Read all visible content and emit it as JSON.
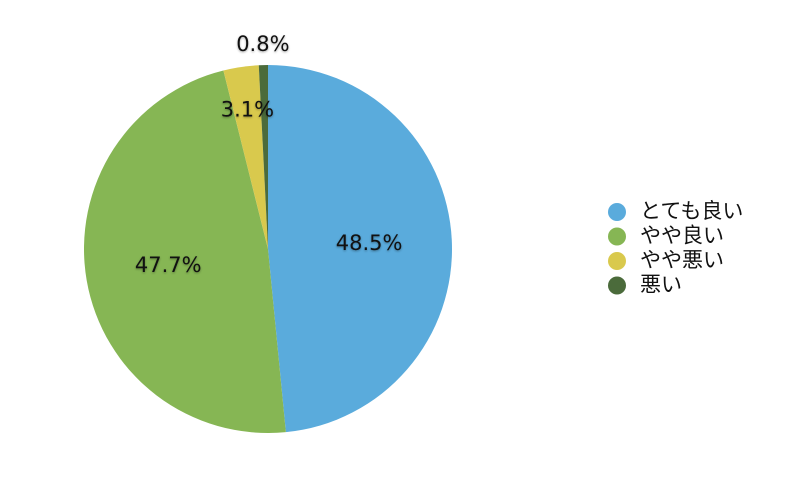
{
  "chart_data": {
    "type": "pie",
    "categories": [
      "とても良い",
      "やや良い",
      "やや悪い",
      "悪い"
    ],
    "values": [
      48.5,
      47.7,
      3.1,
      0.8
    ],
    "value_labels": [
      "48.5%",
      "47.7%",
      "3.1%",
      "0.8%"
    ],
    "colors": [
      "#5aabdc",
      "#86b654",
      "#d9c94d",
      "#4b6b3b"
    ],
    "legend": "right"
  }
}
